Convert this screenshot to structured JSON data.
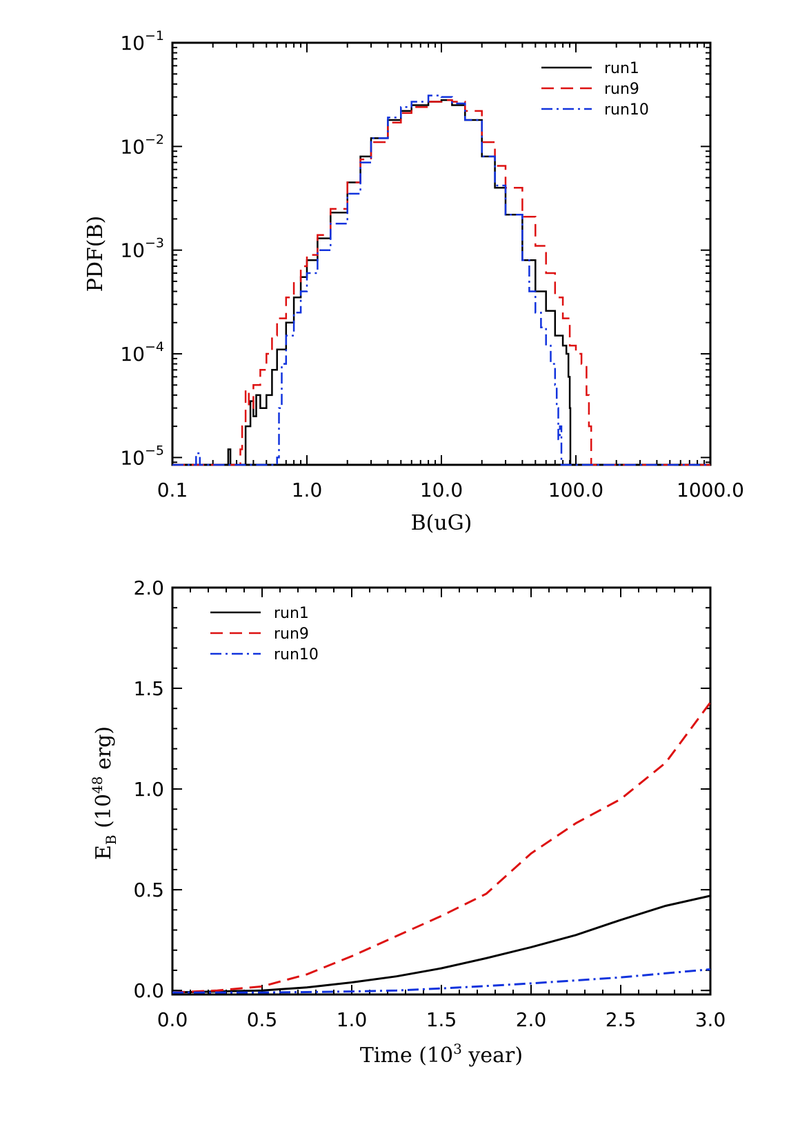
{
  "chart_data": [
    {
      "type": "line",
      "title": "",
      "xlabel": "B(uG)",
      "ylabel": "PDF(B)",
      "xscale": "log",
      "yscale": "log",
      "xlim": [
        0.1,
        1000.0
      ],
      "ylim": [
        8.5e-06,
        0.1
      ],
      "xticks": [
        0.1,
        1.0,
        10.0,
        100.0,
        1000.0
      ],
      "xtick_labels": [
        "0.1",
        "1.0",
        "10.0",
        "100.0",
        "1000.0"
      ],
      "yticks": [
        1e-05,
        0.0001,
        0.001,
        0.01,
        0.1
      ],
      "ytick_labels": [
        {
          "base": "10",
          "exp": "−5"
        },
        {
          "base": "10",
          "exp": "−4"
        },
        {
          "base": "10",
          "exp": "−3"
        },
        {
          "base": "10",
          "exp": "−2"
        },
        {
          "base": "10",
          "exp": "−1"
        }
      ],
      "legend_position": "top-right",
      "series": [
        {
          "name": "run1",
          "color": "#000000",
          "dash": "solid",
          "x": [
            0.1,
            0.25,
            0.26,
            0.27,
            0.35,
            0.38,
            0.4,
            0.42,
            0.45,
            0.5,
            0.55,
            0.6,
            0.7,
            0.8,
            0.9,
            1.0,
            1.2,
            1.5,
            2.0,
            2.5,
            3.0,
            4.0,
            5.0,
            6.0,
            8.0,
            10.0,
            12.0,
            15.0,
            20.0,
            25.0,
            30.0,
            40.0,
            50.0,
            60.0,
            70.0,
            80.0,
            85.0,
            88.0,
            90.0,
            91.0,
            95.0,
            1000.0
          ],
          "y": [
            8.5e-06,
            8.5e-06,
            1.2e-05,
            8.5e-06,
            2e-05,
            3.5e-05,
            2.5e-05,
            4e-05,
            3e-05,
            4e-05,
            7e-05,
            0.00011,
            0.0002,
            0.00035,
            0.00055,
            0.0008,
            0.0013,
            0.0023,
            0.0045,
            0.008,
            0.012,
            0.018,
            0.022,
            0.025,
            0.027,
            0.028,
            0.025,
            0.018,
            0.008,
            0.004,
            0.0022,
            0.0008,
            0.0004,
            0.00026,
            0.00015,
            0.00012,
            0.0001,
            6e-05,
            3e-05,
            8.5e-06,
            8.5e-06,
            8.5e-06
          ]
        },
        {
          "name": "run9",
          "color": "#dd1111",
          "dash": "dashed",
          "x": [
            0.1,
            0.3,
            0.32,
            0.33,
            0.35,
            0.37,
            0.4,
            0.45,
            0.5,
            0.55,
            0.6,
            0.7,
            0.8,
            0.9,
            1.0,
            1.2,
            1.5,
            2.0,
            2.5,
            3.0,
            4.0,
            5.0,
            6.0,
            8.0,
            10.0,
            12.0,
            15.0,
            20.0,
            25.0,
            30.0,
            40.0,
            50.0,
            60.0,
            70.0,
            80.0,
            90.0,
            100.0,
            110.0,
            120.0,
            125.0,
            130.0,
            1000.0
          ],
          "y": [
            8.5e-06,
            8.5e-06,
            1.2e-05,
            2e-05,
            4.5e-05,
            3e-05,
            5e-05,
            7e-05,
            0.0001,
            0.00015,
            0.00022,
            0.00035,
            0.0005,
            0.0007,
            0.0009,
            0.0014,
            0.0025,
            0.0045,
            0.0075,
            0.011,
            0.017,
            0.021,
            0.024,
            0.027,
            0.028,
            0.027,
            0.022,
            0.011,
            0.0065,
            0.004,
            0.0021,
            0.0011,
            0.0006,
            0.00035,
            0.00022,
            0.00012,
            0.0001,
            8e-05,
            4e-05,
            2e-05,
            8.5e-06,
            8.5e-06
          ]
        },
        {
          "name": "run10",
          "color": "#1133dd",
          "dash": "dashdot",
          "x": [
            0.1,
            0.14,
            0.15,
            0.16,
            0.55,
            0.6,
            0.62,
            0.65,
            0.7,
            0.8,
            0.9,
            1.0,
            1.2,
            1.5,
            2.0,
            2.5,
            3.0,
            4.0,
            5.0,
            6.0,
            8.0,
            10.0,
            12.0,
            15.0,
            20.0,
            25.0,
            30.0,
            40.0,
            45.0,
            50.0,
            55.0,
            60.0,
            65.0,
            70.0,
            72.0,
            74.0,
            76.0,
            78.0,
            1000.0
          ],
          "y": [
            8.5e-06,
            8.5e-06,
            1.1e-05,
            8.5e-06,
            8.5e-06,
            1e-05,
            3e-05,
            8e-05,
            0.00015,
            0.00025,
            0.0004,
            0.0006,
            0.001,
            0.0018,
            0.0035,
            0.007,
            0.012,
            0.019,
            0.024,
            0.027,
            0.031,
            0.03,
            0.026,
            0.018,
            0.008,
            0.0042,
            0.0022,
            0.0008,
            0.0004,
            0.00025,
            0.00018,
            0.00012,
            8e-05,
            5e-05,
            3e-05,
            1.5e-05,
            2e-05,
            8.5e-06,
            8.5e-06
          ]
        }
      ]
    },
    {
      "type": "line",
      "title": "",
      "xlabel": "Time (10³ year)",
      "xlabel_parts": {
        "pre": "Time (10",
        "sup": "3",
        "post": " year)"
      },
      "ylabel": "E_B (10^48 erg)",
      "ylabel_parts": {
        "main": "E",
        "sub": "B",
        "mid": " (10",
        "sup": "48",
        "post": " erg)"
      },
      "xscale": "linear",
      "yscale": "linear",
      "xlim": [
        0.0,
        3.0
      ],
      "ylim": [
        -0.02,
        2.0
      ],
      "xticks": [
        0.0,
        0.5,
        1.0,
        1.5,
        2.0,
        2.5,
        3.0
      ],
      "xtick_labels": [
        "0.0",
        "0.5",
        "1.0",
        "1.5",
        "2.0",
        "2.5",
        "3.0"
      ],
      "yticks": [
        0.0,
        0.5,
        1.0,
        1.5,
        2.0
      ],
      "ytick_labels": [
        "0.0",
        "0.5",
        "1.0",
        "1.5",
        "2.0"
      ],
      "legend_position": "top-left",
      "series": [
        {
          "name": "run1",
          "color": "#000000",
          "dash": "solid",
          "x": [
            0.0,
            0.25,
            0.5,
            0.75,
            1.0,
            1.25,
            1.5,
            1.75,
            2.0,
            2.25,
            2.5,
            2.75,
            3.0
          ],
          "y": [
            -0.01,
            -0.005,
            0.0,
            0.015,
            0.04,
            0.07,
            0.11,
            0.16,
            0.215,
            0.275,
            0.35,
            0.42,
            0.47
          ]
        },
        {
          "name": "run9",
          "color": "#dd1111",
          "dash": "dashed",
          "x": [
            0.0,
            0.25,
            0.5,
            0.75,
            1.0,
            1.25,
            1.5,
            1.75,
            2.0,
            2.25,
            2.5,
            2.75,
            3.0
          ],
          "y": [
            -0.01,
            0.0,
            0.02,
            0.08,
            0.17,
            0.27,
            0.37,
            0.48,
            0.68,
            0.83,
            0.95,
            1.13,
            1.43
          ]
        },
        {
          "name": "run10",
          "color": "#1133dd",
          "dash": "dashdot",
          "x": [
            0.0,
            0.25,
            0.5,
            0.75,
            1.0,
            1.25,
            1.5,
            1.75,
            2.0,
            2.25,
            2.5,
            2.75,
            3.0
          ],
          "y": [
            -0.01,
            -0.01,
            -0.01,
            -0.008,
            -0.005,
            0.0,
            0.01,
            0.022,
            0.035,
            0.05,
            0.065,
            0.085,
            0.105
          ]
        }
      ]
    }
  ]
}
